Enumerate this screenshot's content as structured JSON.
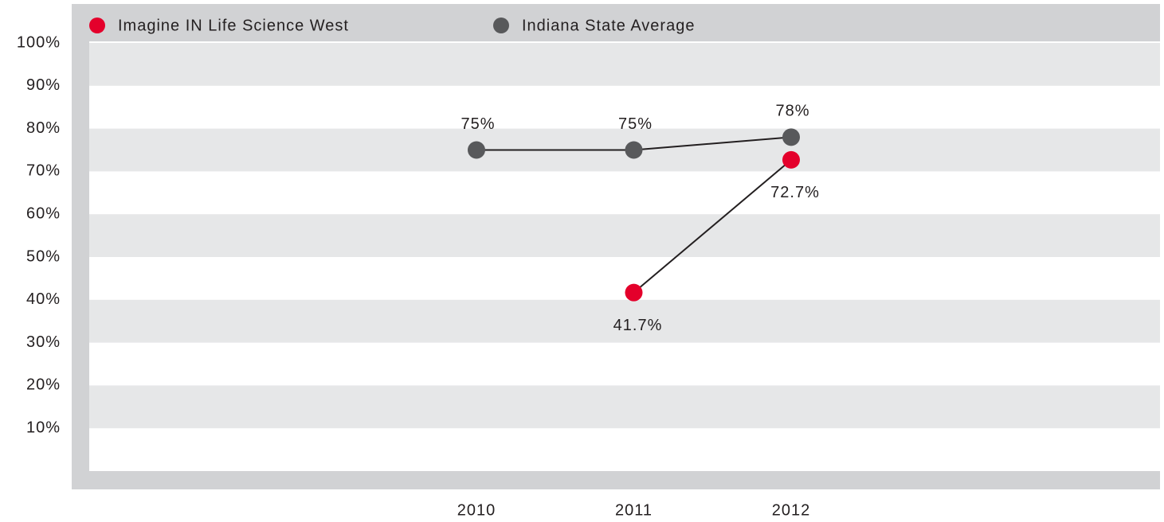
{
  "chart_data": {
    "type": "line",
    "categories": [
      "2010",
      "2011",
      "2012"
    ],
    "series": [
      {
        "name": "Imagine IN Life Science West",
        "color": "#e4002b",
        "values": [
          null,
          41.7,
          72.7
        ],
        "value_labels": [
          null,
          "41.7%",
          "72.7%"
        ]
      },
      {
        "name": "Indiana State Average",
        "color": "#58595b",
        "values": [
          75,
          75,
          78
        ],
        "value_labels": [
          "75%",
          "75%",
          "78%"
        ]
      }
    ],
    "ylim": [
      0,
      100
    ],
    "yticks": [
      {
        "value": 10,
        "label": "10%"
      },
      {
        "value": 20,
        "label": "20%"
      },
      {
        "value": 30,
        "label": "30%"
      },
      {
        "value": 40,
        "label": "40%"
      },
      {
        "value": 50,
        "label": "50%"
      },
      {
        "value": 60,
        "label": "60%"
      },
      {
        "value": 70,
        "label": "70%"
      },
      {
        "value": 80,
        "label": "80%"
      },
      {
        "value": 90,
        "label": "90%"
      },
      {
        "value": 100,
        "label": "100%"
      }
    ],
    "grid": true
  }
}
